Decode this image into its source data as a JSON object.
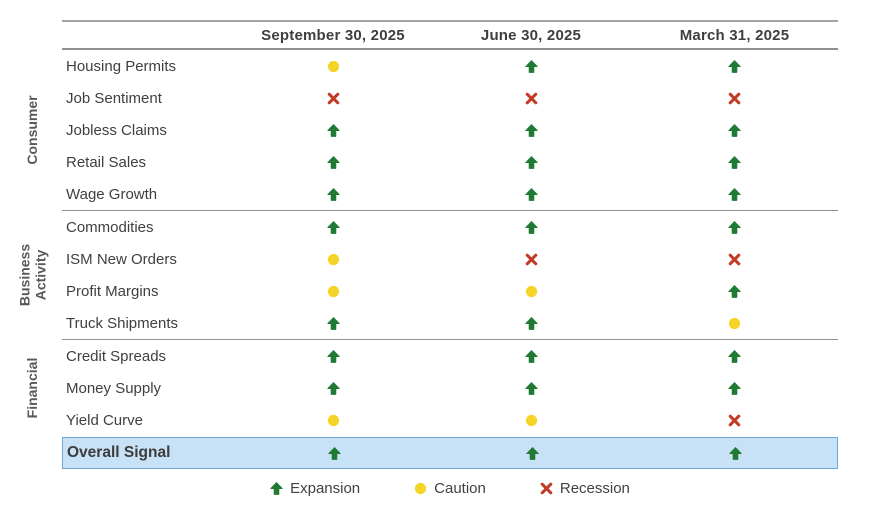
{
  "chart_data": {
    "type": "table",
    "columns": [
      "September 30, 2025",
      "June 30, 2025",
      "March 31, 2025"
    ],
    "groups": [
      {
        "label": "Consumer",
        "rows": [
          {
            "label": "Housing Permits",
            "values": [
              "caution",
              "expansion",
              "expansion"
            ]
          },
          {
            "label": "Job Sentiment",
            "values": [
              "recession",
              "recession",
              "recession"
            ]
          },
          {
            "label": "Jobless Claims",
            "values": [
              "expansion",
              "expansion",
              "expansion"
            ]
          },
          {
            "label": "Retail Sales",
            "values": [
              "expansion",
              "expansion",
              "expansion"
            ]
          },
          {
            "label": "Wage Growth",
            "values": [
              "expansion",
              "expansion",
              "expansion"
            ]
          }
        ]
      },
      {
        "label": "Business Activity",
        "rows": [
          {
            "label": "Commodities",
            "values": [
              "expansion",
              "expansion",
              "expansion"
            ]
          },
          {
            "label": "ISM New Orders",
            "values": [
              "caution",
              "recession",
              "recession"
            ]
          },
          {
            "label": "Profit Margins",
            "values": [
              "caution",
              "caution",
              "expansion"
            ]
          },
          {
            "label": "Truck Shipments",
            "values": [
              "expansion",
              "expansion",
              "caution"
            ]
          }
        ]
      },
      {
        "label": "Financial",
        "rows": [
          {
            "label": "Credit Spreads",
            "values": [
              "expansion",
              "expansion",
              "expansion"
            ]
          },
          {
            "label": "Money Supply",
            "values": [
              "expansion",
              "expansion",
              "expansion"
            ]
          },
          {
            "label": "Yield Curve",
            "values": [
              "caution",
              "caution",
              "recession"
            ]
          }
        ]
      }
    ],
    "overall": {
      "label": "Overall Signal",
      "values": [
        "expansion",
        "expansion",
        "expansion"
      ]
    },
    "legend": [
      {
        "key": "expansion",
        "label": "Expansion"
      },
      {
        "key": "caution",
        "label": "Caution"
      },
      {
        "key": "recession",
        "label": "Recession"
      }
    ]
  },
  "colors": {
    "expansion": "#217a34",
    "caution": "#f4d425",
    "recession": "#c23b27",
    "overall_bg": "#c7e1f6",
    "overall_border": "#6ea9d8"
  }
}
